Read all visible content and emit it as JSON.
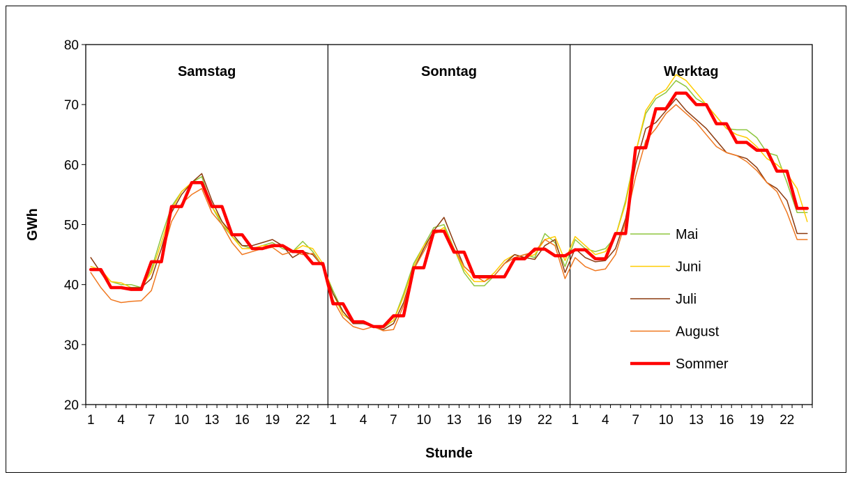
{
  "chart_data": {
    "type": "line",
    "title": "",
    "xlabel": "Stunde",
    "ylabel": "GWh",
    "ylim": [
      20,
      80
    ],
    "yticks": [
      "20",
      "30",
      "40",
      "50",
      "60",
      "70",
      "80"
    ],
    "xticks": [
      "1",
      "4",
      "7",
      "10",
      "13",
      "16",
      "19",
      "22",
      "1",
      "4",
      "7",
      "10",
      "13",
      "16",
      "19",
      "22",
      "1",
      "4",
      "7",
      "10",
      "13",
      "16",
      "19",
      "22"
    ],
    "panels": [
      "Samstag",
      "Sonntag",
      "Werktag"
    ],
    "grid": false,
    "legend_position": "right-inside",
    "x": [
      1,
      2,
      3,
      4,
      5,
      6,
      7,
      8,
      9,
      10,
      11,
      12,
      13,
      14,
      15,
      16,
      17,
      18,
      19,
      20,
      21,
      22,
      23,
      24,
      25,
      26,
      27,
      28,
      29,
      30,
      31,
      32,
      33,
      34,
      35,
      36,
      37,
      38,
      39,
      40,
      41,
      42,
      43,
      44,
      45,
      46,
      47,
      48,
      49,
      50,
      51,
      52,
      53,
      54,
      55,
      56,
      57,
      58,
      59,
      60,
      61,
      62,
      63,
      64,
      65,
      66,
      67,
      68,
      69,
      70,
      71,
      72
    ],
    "series": [
      {
        "name": "Mai",
        "color": "#8dc63f",
        "width": 1.5,
        "step": false,
        "values": [
          42.5,
          42.3,
          40.5,
          40.0,
          40.0,
          39.5,
          42.5,
          48.0,
          53.0,
          55.5,
          57.0,
          58.0,
          53.0,
          50.0,
          48.0,
          46.5,
          46.0,
          46.5,
          47.0,
          46.0,
          45.5,
          47.2,
          45.5,
          43.0,
          39.0,
          35.5,
          33.5,
          33.5,
          33.2,
          32.8,
          34.0,
          38.5,
          43.5,
          46.5,
          49.5,
          50.0,
          46.0,
          42.0,
          39.8,
          39.8,
          41.5,
          43.5,
          44.5,
          45.0,
          44.5,
          48.5,
          47.0,
          43.0,
          47.5,
          46.0,
          45.5,
          46.0,
          48.0,
          54.0,
          62.0,
          68.5,
          71.0,
          72.0,
          74.0,
          73.0,
          71.0,
          70.0,
          68.0,
          66.0,
          65.8,
          65.8,
          64.5,
          62.0,
          61.5,
          57.0,
          52.0,
          52.0
        ]
      },
      {
        "name": "Juni",
        "color": "#ffcc00",
        "width": 1.5,
        "step": false,
        "values": [
          43.0,
          42.5,
          40.5,
          40.3,
          39.5,
          39.5,
          42.0,
          47.0,
          52.5,
          55.5,
          57.0,
          57.2,
          53.0,
          50.5,
          48.0,
          46.0,
          46.0,
          46.5,
          46.5,
          46.5,
          45.5,
          46.5,
          46.0,
          43.5,
          38.5,
          35.0,
          33.8,
          33.8,
          33.0,
          33.0,
          34.0,
          38.0,
          43.0,
          46.5,
          48.5,
          49.5,
          46.0,
          42.5,
          40.5,
          40.5,
          42.0,
          44.0,
          45.0,
          44.5,
          45.0,
          47.5,
          48.0,
          44.0,
          48.0,
          46.5,
          45.0,
          45.5,
          48.0,
          53.5,
          62.0,
          69.0,
          71.5,
          72.5,
          75.0,
          74.0,
          72.0,
          70.0,
          68.0,
          66.0,
          65.0,
          64.5,
          63.0,
          61.0,
          60.0,
          58.5,
          56.0,
          50.5
        ]
      },
      {
        "name": "Juli",
        "color": "#8b3a0f",
        "width": 1.5,
        "step": false,
        "values": [
          44.5,
          42.0,
          39.5,
          39.5,
          39.5,
          39.5,
          41.0,
          46.0,
          52.0,
          55.0,
          57.0,
          58.5,
          54.0,
          50.5,
          48.5,
          46.5,
          46.5,
          47.0,
          47.5,
          46.5,
          44.5,
          45.5,
          45.0,
          43.0,
          38.5,
          35.5,
          33.5,
          33.5,
          33.0,
          32.5,
          33.5,
          37.0,
          42.5,
          46.0,
          49.0,
          51.2,
          47.0,
          43.0,
          41.5,
          41.5,
          41.5,
          43.5,
          45.0,
          44.5,
          44.2,
          46.5,
          47.5,
          42.0,
          46.0,
          44.5,
          43.8,
          44.0,
          46.0,
          51.0,
          60.0,
          66.0,
          67.0,
          69.0,
          71.0,
          69.0,
          67.5,
          66.0,
          64.0,
          62.0,
          61.5,
          61.0,
          59.5,
          57.0,
          56.0,
          54.0,
          48.5,
          48.5
        ]
      },
      {
        "name": "August",
        "color": "#f07820",
        "width": 1.5,
        "step": false,
        "values": [
          42.0,
          39.5,
          37.5,
          37.0,
          37.2,
          37.3,
          39.0,
          44.5,
          50.5,
          53.5,
          55.0,
          56.0,
          52.0,
          50.0,
          47.0,
          45.0,
          45.5,
          46.0,
          46.2,
          45.0,
          45.5,
          45.0,
          45.2,
          43.0,
          37.5,
          34.5,
          33.0,
          32.5,
          33.0,
          32.3,
          32.5,
          36.5,
          42.5,
          45.5,
          48.5,
          49.0,
          46.0,
          43.0,
          41.5,
          40.5,
          41.5,
          43.5,
          44.5,
          45.0,
          45.5,
          47.5,
          46.5,
          41.0,
          44.5,
          43.0,
          42.3,
          42.6,
          45.0,
          50.5,
          58.0,
          64.0,
          66.0,
          68.5,
          70.0,
          68.5,
          67.0,
          65.0,
          63.0,
          62.0,
          61.5,
          60.5,
          59.0,
          57.0,
          55.5,
          52.0,
          47.5,
          47.5
        ]
      },
      {
        "name": "Sommer",
        "color": "#ff0000",
        "width": 4.5,
        "step": true,
        "values": [
          42.5,
          42.5,
          39.5,
          39.5,
          39.2,
          39.2,
          43.8,
          43.8,
          53.0,
          53.0,
          57.0,
          57.0,
          53.0,
          53.0,
          48.3,
          48.3,
          46.0,
          46.0,
          46.5,
          46.5,
          45.5,
          45.5,
          43.5,
          43.5,
          36.8,
          36.8,
          33.8,
          33.8,
          33.0,
          33.0,
          34.8,
          34.8,
          42.8,
          42.8,
          48.9,
          48.9,
          45.4,
          45.4,
          41.3,
          41.3,
          41.3,
          41.3,
          44.3,
          44.3,
          45.9,
          45.9,
          44.8,
          44.8,
          45.8,
          45.8,
          44.3,
          44.3,
          48.5,
          48.5,
          62.8,
          62.8,
          69.3,
          69.3,
          71.9,
          71.9,
          70.0,
          70.0,
          66.8,
          66.8,
          63.7,
          63.7,
          62.4,
          62.4,
          58.9,
          58.9,
          52.7,
          52.7
        ]
      }
    ]
  }
}
